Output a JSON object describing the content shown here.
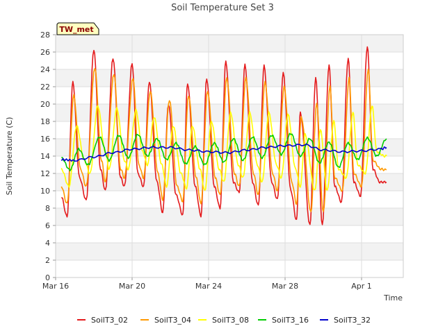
{
  "chart_data": {
    "type": "line",
    "title": "Soil Temperature Set 3",
    "xlabel": "Time",
    "ylabel": "Soil Temperature (C)",
    "badge": "TW_met",
    "x_unit": "days",
    "xlim": [
      "Mar 16",
      "Apr 3"
    ],
    "x_ticks": [
      {
        "label": "Mar 16",
        "day": 0
      },
      {
        "label": "Mar 20",
        "day": 4
      },
      {
        "label": "Mar 24",
        "day": 8
      },
      {
        "label": "Mar 28",
        "day": 12
      },
      {
        "label": "Apr 1",
        "day": 16
      }
    ],
    "ylim": [
      0,
      28
    ],
    "y_ticks": [
      0,
      2,
      4,
      6,
      8,
      10,
      12,
      14,
      16,
      18,
      20,
      22,
      24,
      26,
      28
    ],
    "grid": true,
    "legend_position": "bottom",
    "series": [
      {
        "name": "SoilT3_02",
        "color": "#e41a1c",
        "x": [
          0.3,
          0.6,
          0.9,
          1.25,
          1.6,
          2.0,
          2.35,
          2.6,
          3.0,
          3.4,
          3.6,
          4.0,
          4.3,
          4.6,
          4.9,
          5.3,
          5.6,
          5.9,
          6.3,
          6.65,
          6.9,
          7.3,
          7.6,
          7.9,
          8.3,
          8.6,
          8.9,
          9.3,
          9.6,
          9.9,
          10.3,
          10.6,
          10.9,
          11.3,
          11.6,
          11.9,
          12.3,
          12.6,
          12.8,
          13.3,
          13.6,
          13.95,
          14.3,
          14.6,
          14.95,
          15.3,
          15.6,
          15.95,
          16.3,
          16.6,
          16.95,
          17.3
        ],
        "y": [
          9.3,
          7.0,
          22.5,
          11.5,
          8.9,
          26.3,
          12.5,
          10.0,
          25.3,
          11.5,
          10.5,
          24.7,
          12.0,
          10.5,
          22.6,
          11.0,
          7.5,
          20.0,
          9.5,
          7.2,
          22.4,
          10.5,
          7.1,
          22.9,
          10.5,
          8.0,
          24.9,
          11.0,
          9.8,
          24.5,
          11.0,
          8.3,
          24.4,
          11.0,
          9.0,
          23.6,
          10.0,
          6.6,
          19.0,
          6.0,
          23.0,
          6.0,
          24.4,
          10.5,
          8.7,
          25.2,
          11.0,
          9.4,
          26.6,
          12.5,
          11.0,
          11.0
        ]
      },
      {
        "name": "SoilT3_04",
        "color": "#ff9900",
        "x": [
          0.3,
          0.6,
          0.95,
          1.3,
          1.6,
          2.05,
          2.4,
          2.6,
          3.05,
          3.4,
          3.6,
          4.05,
          4.35,
          4.6,
          4.95,
          5.35,
          5.6,
          5.95,
          6.35,
          6.65,
          6.95,
          7.35,
          7.6,
          7.95,
          8.35,
          8.6,
          8.95,
          9.35,
          9.6,
          9.95,
          10.35,
          10.6,
          10.95,
          11.35,
          11.6,
          11.95,
          12.35,
          12.6,
          12.85,
          13.35,
          13.65,
          14.0,
          14.35,
          14.6,
          15.0,
          15.35,
          15.6,
          16.0,
          16.35,
          16.6,
          17.0,
          17.3
        ],
        "y": [
          10.5,
          8.5,
          21.0,
          12.5,
          10.5,
          24.2,
          13.5,
          11.0,
          23.5,
          12.5,
          11.5,
          23.0,
          13.0,
          11.5,
          21.5,
          12.0,
          9.0,
          20.5,
          10.5,
          8.8,
          21.0,
          11.5,
          8.5,
          21.5,
          11.5,
          9.5,
          23.0,
          12.0,
          10.5,
          23.0,
          12.0,
          9.5,
          22.5,
          12.0,
          10.0,
          22.0,
          11.0,
          8.5,
          18.5,
          7.5,
          20.0,
          7.5,
          22.0,
          11.5,
          10.0,
          23.0,
          12.0,
          10.5,
          24.0,
          13.5,
          12.5,
          12.4
        ]
      },
      {
        "name": "SoilT3_08",
        "color": "#ffff00",
        "x": [
          0.3,
          0.7,
          1.1,
          1.5,
          1.8,
          2.2,
          2.6,
          2.8,
          3.2,
          3.6,
          3.8,
          4.2,
          4.55,
          4.8,
          5.15,
          5.55,
          5.8,
          6.15,
          6.55,
          6.85,
          7.15,
          7.55,
          7.8,
          8.15,
          8.55,
          8.8,
          9.15,
          9.55,
          9.8,
          10.15,
          10.55,
          10.8,
          11.15,
          11.55,
          11.8,
          12.15,
          12.55,
          12.8,
          13.05,
          13.55,
          13.85,
          14.2,
          14.55,
          14.8,
          15.2,
          15.55,
          15.8,
          16.2,
          16.55,
          16.8,
          17.2,
          17.3
        ],
        "y": [
          12.5,
          10.5,
          17.5,
          13.5,
          12.0,
          19.8,
          14.5,
          12.5,
          19.5,
          13.5,
          12.5,
          19.3,
          14.5,
          13.0,
          18.5,
          13.0,
          10.5,
          17.5,
          12.0,
          10.3,
          17.5,
          12.5,
          10.0,
          18.0,
          12.5,
          11.0,
          19.0,
          13.0,
          11.5,
          19.0,
          13.0,
          11.0,
          19.0,
          13.0,
          11.5,
          18.8,
          12.5,
          10.5,
          16.5,
          10.0,
          17.0,
          10.0,
          18.0,
          12.5,
          11.5,
          19.0,
          13.0,
          12.0,
          19.8,
          14.5,
          14.0,
          14.0
        ]
      },
      {
        "name": "SoilT3_16",
        "color": "#00cc00",
        "x": [
          0.3,
          0.75,
          1.2,
          1.7,
          2.3,
          2.8,
          3.3,
          3.8,
          4.3,
          4.8,
          5.3,
          5.8,
          6.3,
          6.8,
          7.3,
          7.8,
          8.3,
          8.8,
          9.3,
          9.8,
          10.3,
          10.8,
          11.3,
          11.8,
          12.3,
          12.8,
          13.3,
          13.8,
          14.3,
          14.8,
          15.3,
          15.8,
          16.3,
          16.8,
          17.3
        ],
        "y": [
          13.8,
          12.4,
          14.8,
          13.0,
          16.2,
          13.5,
          16.4,
          13.8,
          16.5,
          14.0,
          16.0,
          13.6,
          15.5,
          13.1,
          15.1,
          13.0,
          15.5,
          13.3,
          16.0,
          13.5,
          16.2,
          13.8,
          16.4,
          14.2,
          16.6,
          14.0,
          16.0,
          13.2,
          15.6,
          12.7,
          15.5,
          13.6,
          16.1,
          14.0,
          16.0
        ]
      },
      {
        "name": "SoilT3_32",
        "color": "#0000cc",
        "x": [
          0.3,
          1.0,
          2.0,
          3.0,
          4.0,
          5.0,
          6.0,
          7.0,
          8.0,
          9.0,
          10.0,
          11.0,
          12.0,
          13.0,
          14.0,
          15.0,
          16.0,
          17.0,
          17.3
        ],
        "y": [
          13.6,
          13.5,
          13.9,
          14.4,
          14.8,
          15.0,
          15.0,
          14.7,
          14.5,
          14.4,
          14.7,
          15.0,
          15.2,
          15.3,
          14.7,
          14.5,
          14.6,
          14.8,
          15.0
        ]
      }
    ]
  }
}
